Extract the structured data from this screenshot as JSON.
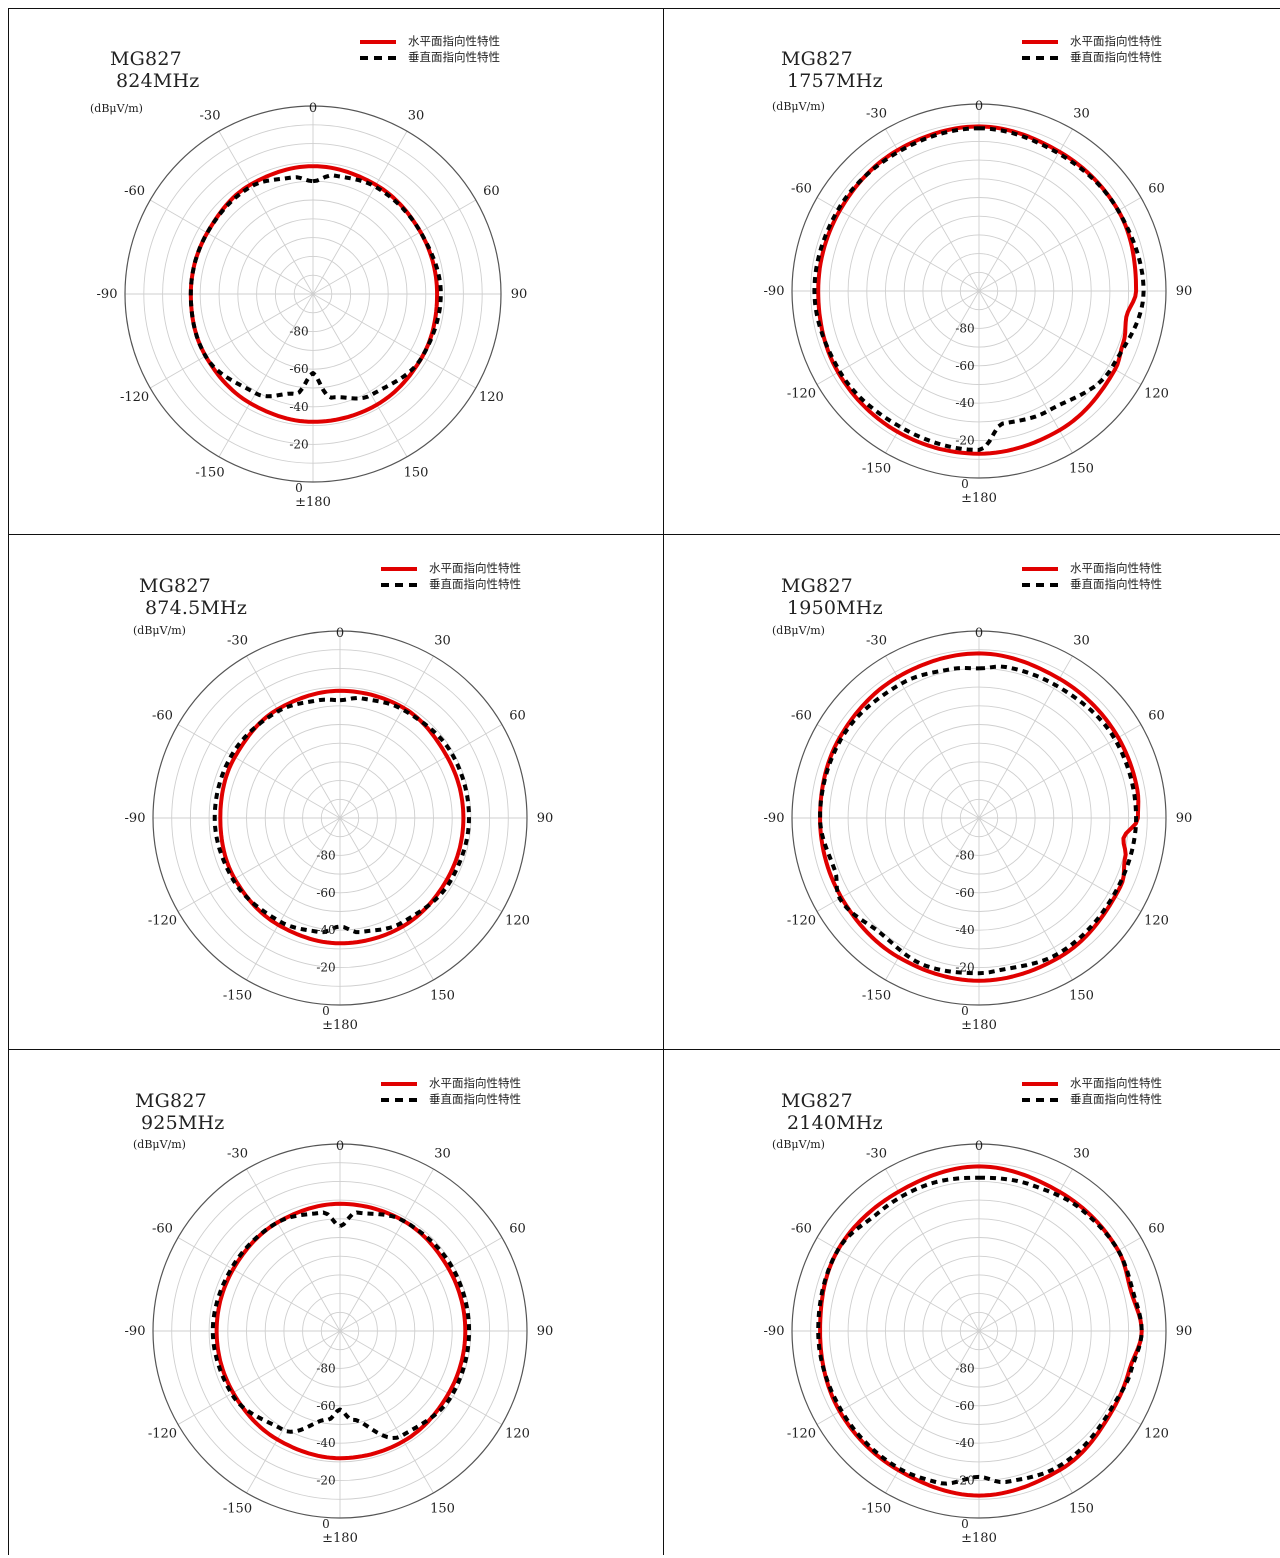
{
  "legend": {
    "horizontal": "水平面指向性特性",
    "vertical": "垂直面指向性特性"
  },
  "colors": {
    "horizontal": "#e00000",
    "vertical": "#000000",
    "grid": "#cfcfcf",
    "frame": "#555555"
  },
  "axis_angle_labels": [
    "0",
    "30",
    "60",
    "90",
    "120",
    "150",
    "±180",
    "-150",
    "-120",
    "-90",
    "-60",
    "-30"
  ],
  "radial_labels": [
    "-80",
    "-60",
    "-40",
    "-20",
    "0"
  ],
  "radial_unit": "(dBμV/m)",
  "chart_data": [
    {
      "type": "polar",
      "model": "MG827",
      "freq": "824MHz",
      "rlim": [
        -100,
        0
      ],
      "grid": true,
      "legend_placement": "top-right",
      "series": [
        {
          "name": "水平面指向性特性",
          "style": "solid",
          "angles": [
            0,
            30,
            60,
            90,
            120,
            150,
            180,
            -150,
            -120,
            -90,
            -60,
            -30
          ],
          "values": [
            -32,
            -33,
            -34,
            -34,
            -33,
            -32,
            -32,
            -33,
            -34,
            -35,
            -35,
            -33
          ]
        },
        {
          "name": "垂直面指向性特性",
          "style": "dashed",
          "angles": [
            0,
            10,
            30,
            60,
            90,
            120,
            150,
            170,
            180,
            -170,
            -150,
            -120,
            -90,
            -60,
            -30,
            -10
          ],
          "values": [
            -40,
            -36,
            -34,
            -34,
            -32,
            -33,
            -38,
            -44,
            -58,
            -46,
            -39,
            -34,
            -35,
            -35,
            -34,
            -37
          ]
        }
      ]
    },
    {
      "type": "polar",
      "model": "MG827",
      "freq": "1757MHz",
      "rlim": [
        -100,
        0
      ],
      "grid": true,
      "legend_placement": "top-right",
      "series": [
        {
          "name": "水平面指向性特性",
          "style": "solid",
          "angles": [
            0,
            30,
            60,
            90,
            100,
            110,
            120,
            150,
            180,
            -150,
            -120,
            -90,
            -60,
            -30
          ],
          "values": [
            -12,
            -14,
            -14,
            -16,
            -20,
            -18,
            -16,
            -14,
            -13,
            -13,
            -13,
            -14,
            -14,
            -13
          ]
        },
        {
          "name": "垂直面指向性特性",
          "style": "dashed",
          "angles": [
            0,
            30,
            60,
            90,
            120,
            150,
            170,
            180,
            -150,
            -120,
            -90,
            -60,
            -30
          ],
          "values": [
            -13,
            -15,
            -14,
            -12,
            -18,
            -26,
            -28,
            -15,
            -16,
            -14,
            -12,
            -13,
            -14
          ]
        }
      ]
    },
    {
      "type": "polar",
      "model": "MG827",
      "freq": "874.5MHz",
      "rlim": [
        -100,
        0
      ],
      "grid": true,
      "legend_placement": "top-right",
      "series": [
        {
          "name": "水平面指向性特性",
          "style": "solid",
          "angles": [
            0,
            30,
            60,
            90,
            120,
            150,
            180,
            -150,
            -120,
            -90,
            -60,
            -30
          ],
          "values": [
            -32,
            -32,
            -34,
            -34,
            -34,
            -33,
            -33,
            -34,
            -35,
            -36,
            -35,
            -33
          ]
        },
        {
          "name": "垂直面指向性特性",
          "style": "dashed",
          "angles": [
            0,
            10,
            30,
            60,
            90,
            120,
            150,
            170,
            180,
            -170,
            -150,
            -120,
            -90,
            -60,
            -30,
            -10
          ],
          "values": [
            -37,
            -35,
            -33,
            -31,
            -31,
            -32,
            -35,
            -38,
            -42,
            -38,
            -36,
            -34,
            -33,
            -33,
            -34,
            -36
          ]
        }
      ]
    },
    {
      "type": "polar",
      "model": "MG827",
      "freq": "1950MHz",
      "rlim": [
        -100,
        0
      ],
      "grid": true,
      "legend_placement": "top-right",
      "series": [
        {
          "name": "水平面指向性特性",
          "style": "solid",
          "angles": [
            0,
            30,
            60,
            80,
            90,
            98,
            105,
            115,
            120,
            150,
            180,
            -150,
            -120,
            -90,
            -60,
            -30
          ],
          "values": [
            -12,
            -14,
            -14,
            -14,
            -15,
            -22,
            -19,
            -16,
            -16,
            -14,
            -13,
            -14,
            -15,
            -15,
            -14,
            -13
          ]
        },
        {
          "name": "垂直面指向性特性",
          "style": "dashed",
          "angles": [
            0,
            10,
            30,
            60,
            90,
            120,
            150,
            170,
            180,
            -160,
            -140,
            -120,
            -110,
            -90,
            -60,
            -30,
            -10
          ],
          "values": [
            -20,
            -18,
            -18,
            -16,
            -16,
            -17,
            -16,
            -18,
            -17,
            -16,
            -19,
            -14,
            -18,
            -15,
            -15,
            -17,
            -19
          ]
        }
      ]
    },
    {
      "type": "polar",
      "model": "MG827",
      "freq": "925MHz",
      "rlim": [
        -100,
        0
      ],
      "grid": true,
      "legend_placement": "top-right",
      "series": [
        {
          "name": "水平面指向性特性",
          "style": "solid",
          "angles": [
            0,
            30,
            60,
            90,
            120,
            150,
            180,
            -150,
            -120,
            -90,
            -60,
            -30
          ],
          "values": [
            -32,
            -32,
            -33,
            -33,
            -33,
            -32,
            -32,
            -33,
            -34,
            -34,
            -34,
            -33
          ]
        },
        {
          "name": "垂直面指向性特性",
          "style": "dashed",
          "angles": [
            0,
            8,
            30,
            60,
            90,
            120,
            150,
            172,
            180,
            -172,
            -150,
            -120,
            -90,
            -60,
            -30,
            -8
          ],
          "values": [
            -44,
            -36,
            -32,
            -31,
            -31,
            -31,
            -35,
            -52,
            -58,
            -52,
            -39,
            -33,
            -32,
            -33,
            -33,
            -36
          ]
        }
      ]
    },
    {
      "type": "polar",
      "model": "MG827",
      "freq": "2140MHz",
      "rlim": [
        -100,
        0
      ],
      "grid": true,
      "legend_placement": "top-right",
      "series": [
        {
          "name": "水平面指向性特性",
          "style": "solid",
          "angles": [
            0,
            30,
            60,
            75,
            90,
            105,
            120,
            150,
            180,
            -150,
            -120,
            -90,
            -60,
            -30
          ],
          "values": [
            -12,
            -14,
            -14,
            -16,
            -13,
            -17,
            -17,
            -14,
            -12,
            -14,
            -14,
            -15,
            -13,
            -14
          ]
        },
        {
          "name": "垂直面指向性特性",
          "style": "dashed",
          "angles": [
            0,
            20,
            40,
            60,
            75,
            90,
            105,
            120,
            150,
            170,
            180,
            -165,
            -150,
            -120,
            -90,
            -60,
            -40,
            -20
          ],
          "values": [
            -18,
            -17,
            -15,
            -14,
            -15,
            -13,
            -16,
            -18,
            -16,
            -18,
            -22,
            -16,
            -15,
            -15,
            -14,
            -13,
            -17,
            -17
          ]
        }
      ]
    }
  ]
}
